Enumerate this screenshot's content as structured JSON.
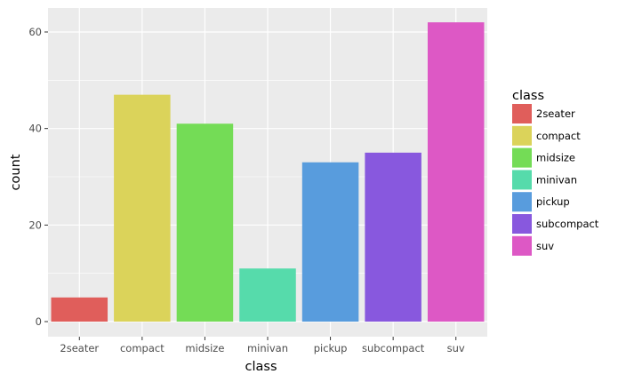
{
  "chart_data": {
    "type": "bar",
    "categories": [
      "2seater",
      "compact",
      "midsize",
      "minivan",
      "pickup",
      "subcompact",
      "suv"
    ],
    "values": [
      5,
      47,
      41,
      11,
      33,
      35,
      62
    ],
    "colors": [
      "#e05e5b",
      "#dbd35a",
      "#74dc56",
      "#56dbab",
      "#589cdd",
      "#8858de",
      "#dd58c5"
    ],
    "xlabel": "class",
    "ylabel": "count",
    "ylim": [
      0,
      65
    ],
    "yticks": [
      0,
      20,
      40,
      60
    ],
    "grid": true,
    "panel_background": "#ebebeb",
    "legend": {
      "title": "class",
      "placement": "right",
      "entries": [
        "2seater",
        "compact",
        "midsize",
        "minivan",
        "pickup",
        "subcompact",
        "suv"
      ]
    }
  }
}
